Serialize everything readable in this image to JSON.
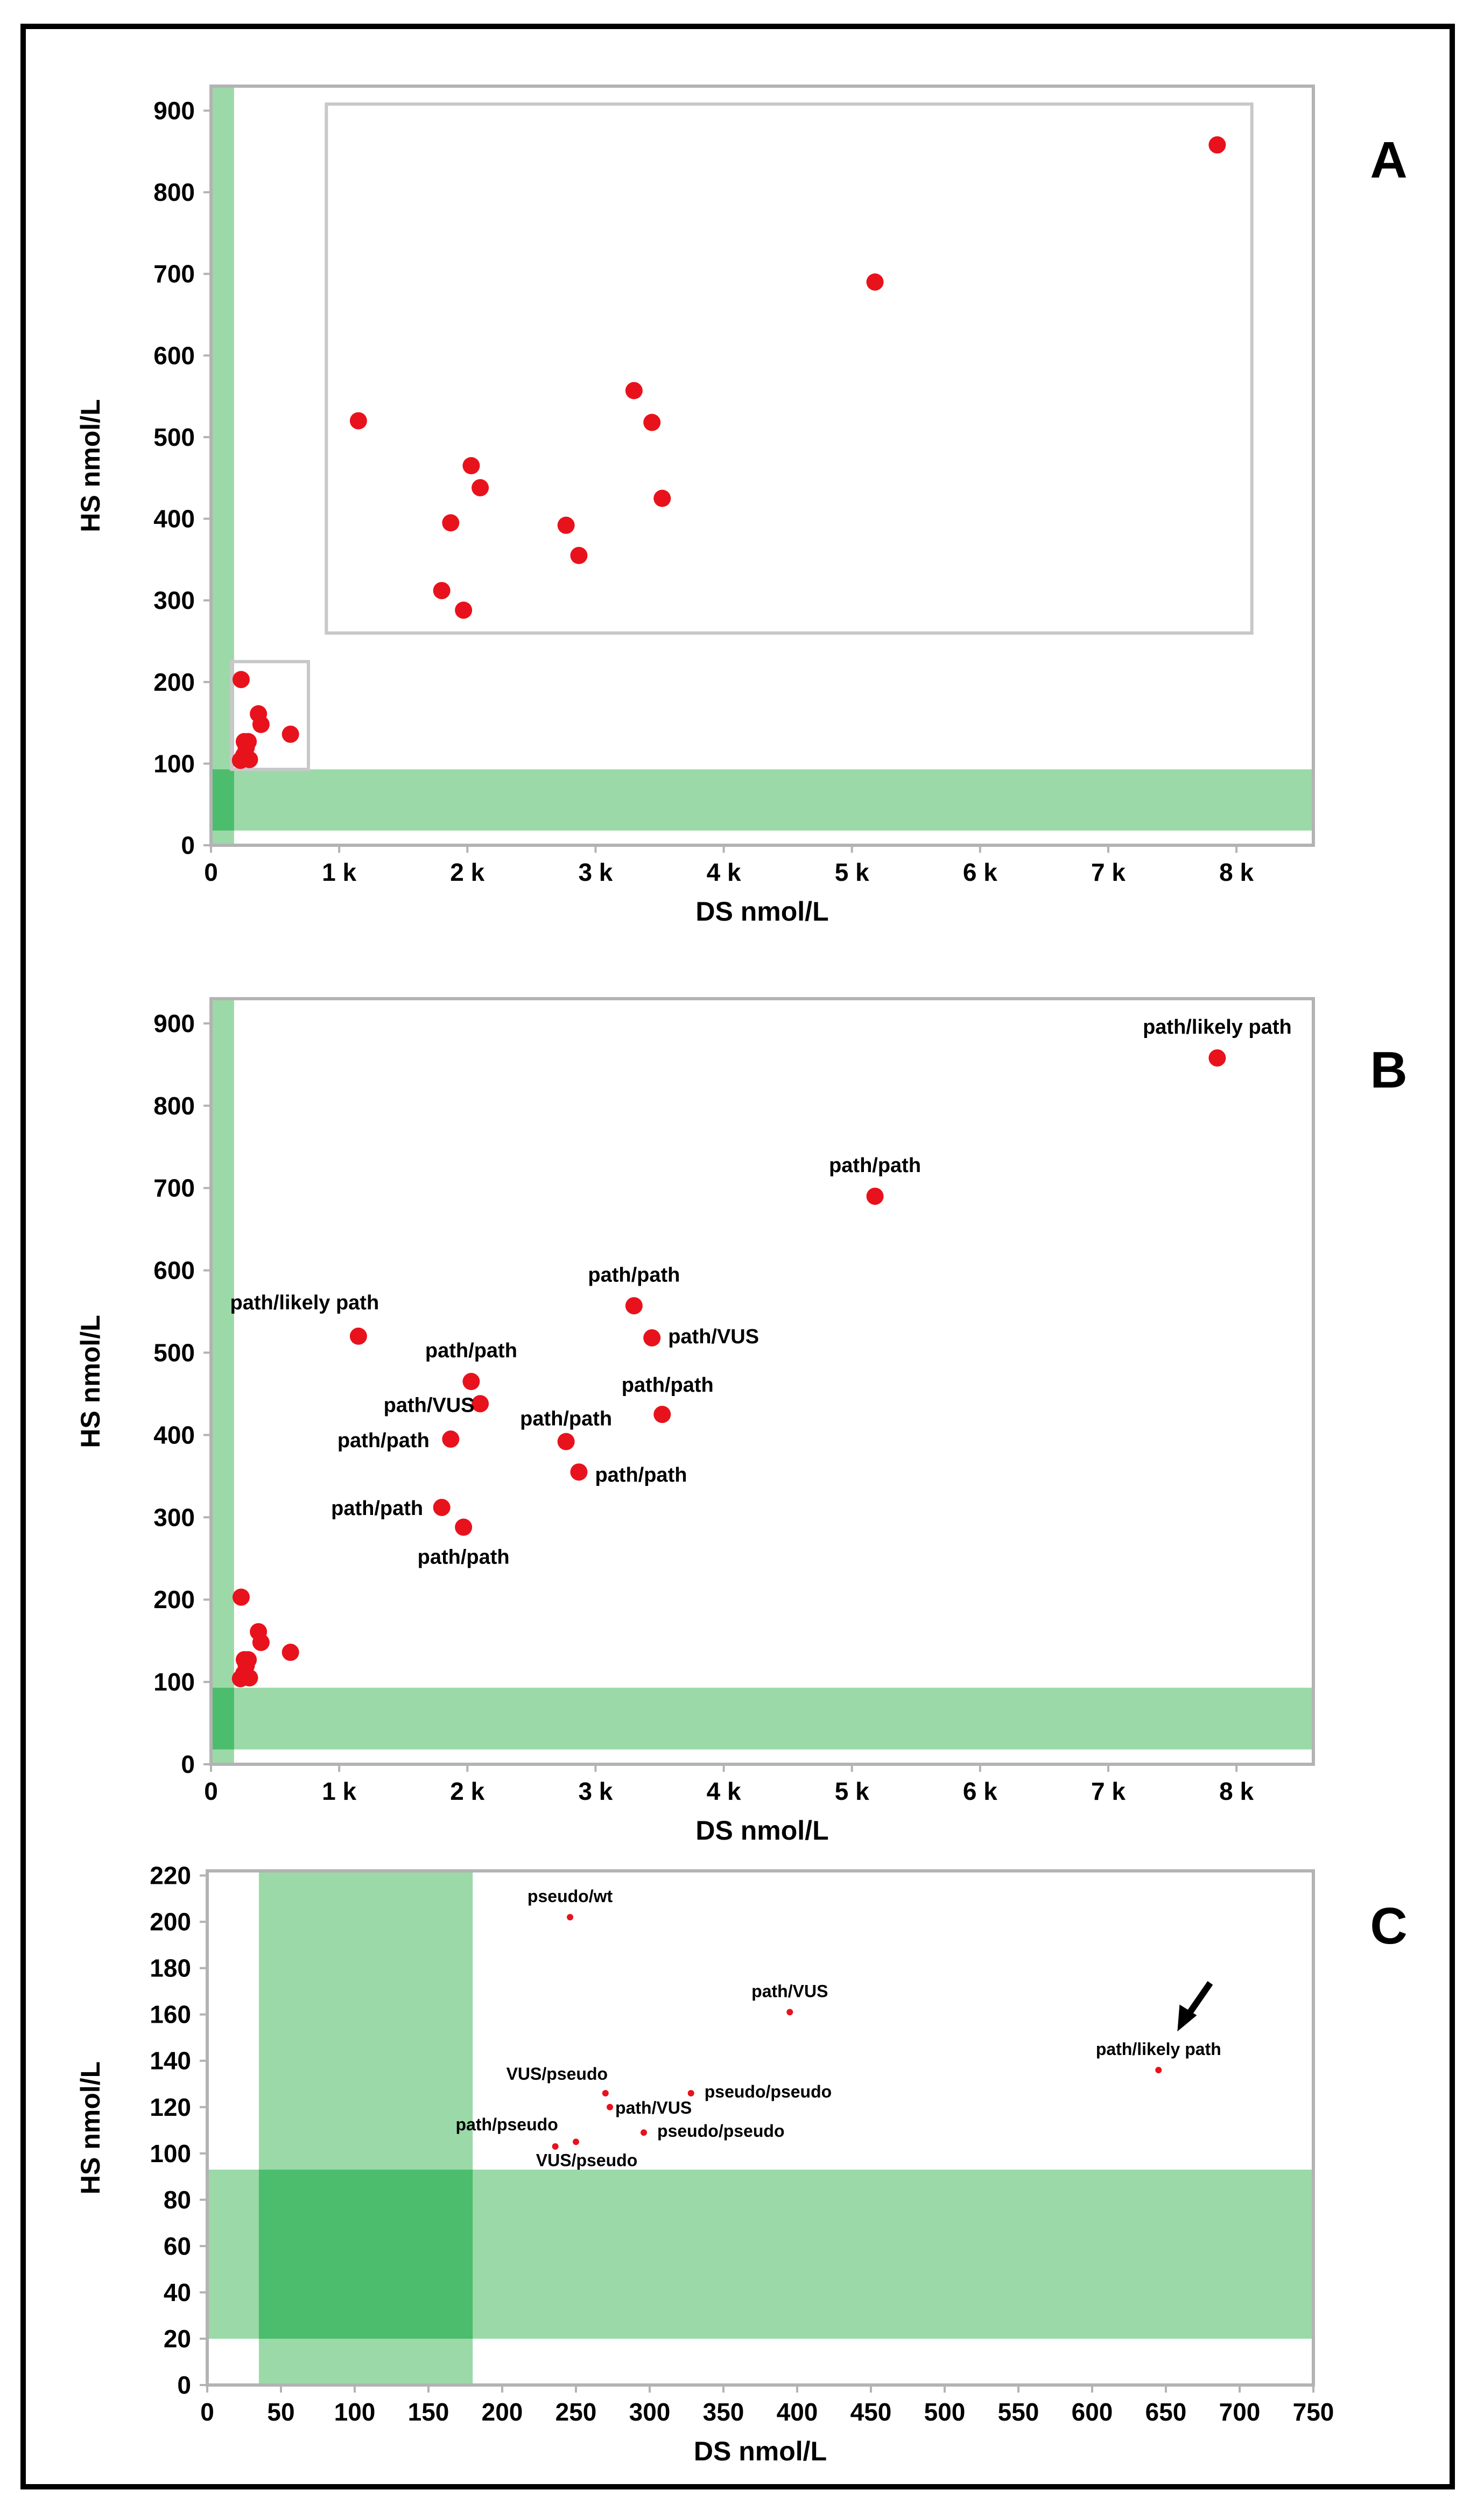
{
  "chart_data": [
    {
      "panel": "A",
      "type": "scatter",
      "xlabel": "DS nmol/L",
      "ylabel": "HS nmol/L",
      "xlim": [
        0,
        8600
      ],
      "ylim": [
        0,
        930
      ],
      "xticks": [
        0,
        1000,
        2000,
        3000,
        4000,
        5000,
        6000,
        7000,
        8000
      ],
      "xtick_labels": [
        "0",
        "1 k",
        "2 k",
        "3 k",
        "4 k",
        "5 k",
        "6 k",
        "7 k",
        "8 k"
      ],
      "yticks": [
        0,
        100,
        200,
        300,
        400,
        500,
        600,
        700,
        800,
        900
      ],
      "ytick_labels": [
        "0",
        "100",
        "200",
        "300",
        "400",
        "500",
        "600",
        "700",
        "800",
        "900"
      ],
      "normal_band_x": [
        0,
        180
      ],
      "normal_band_y": [
        18,
        93
      ],
      "colors": {
        "point": "#e8121c",
        "band": "#9cd9a8",
        "band_overlap": "#4cbd6c",
        "frame": "#b3b3b3"
      },
      "points": [
        {
          "x": 1150,
          "y": 520
        },
        {
          "x": 1800,
          "y": 312
        },
        {
          "x": 1870,
          "y": 395
        },
        {
          "x": 1970,
          "y": 288
        },
        {
          "x": 2030,
          "y": 465
        },
        {
          "x": 2100,
          "y": 438
        },
        {
          "x": 2770,
          "y": 392
        },
        {
          "x": 2870,
          "y": 355
        },
        {
          "x": 3300,
          "y": 557
        },
        {
          "x": 3440,
          "y": 518
        },
        {
          "x": 3520,
          "y": 425
        },
        {
          "x": 5180,
          "y": 690
        },
        {
          "x": 7850,
          "y": 858
        },
        {
          "x": 235,
          "y": 203
        },
        {
          "x": 370,
          "y": 161
        },
        {
          "x": 390,
          "y": 148
        },
        {
          "x": 620,
          "y": 136
        },
        {
          "x": 290,
          "y": 127
        },
        {
          "x": 260,
          "y": 127
        },
        {
          "x": 275,
          "y": 120
        },
        {
          "x": 255,
          "y": 110
        },
        {
          "x": 300,
          "y": 105
        },
        {
          "x": 230,
          "y": 104
        }
      ],
      "inset_box": {
        "x": [
          160,
          760
        ],
        "y": [
          93,
          225
        ]
      },
      "zoom_box": {
        "x": [
          900,
          8120
        ],
        "y": [
          260,
          908
        ]
      }
    },
    {
      "panel": "B",
      "type": "scatter",
      "xlabel": "DS nmol/L",
      "ylabel": "HS nmol/L",
      "xlim": [
        0,
        8600
      ],
      "ylim": [
        0,
        930
      ],
      "xticks": [
        0,
        1000,
        2000,
        3000,
        4000,
        5000,
        6000,
        7000,
        8000
      ],
      "xtick_labels": [
        "0",
        "1 k",
        "2 k",
        "3 k",
        "4 k",
        "5 k",
        "6 k",
        "7 k",
        "8 k"
      ],
      "yticks": [
        0,
        100,
        200,
        300,
        400,
        500,
        600,
        700,
        800,
        900
      ],
      "ytick_labels": [
        "0",
        "100",
        "200",
        "300",
        "400",
        "500",
        "600",
        "700",
        "800",
        "900"
      ],
      "normal_band_x": [
        0,
        180
      ],
      "normal_band_y": [
        18,
        93
      ],
      "points": [
        {
          "x": 7850,
          "y": 858,
          "label": "path/likely path"
        },
        {
          "x": 5180,
          "y": 690,
          "label": "path/path"
        },
        {
          "x": 3300,
          "y": 557,
          "label": "path/path"
        },
        {
          "x": 3440,
          "y": 518,
          "label": "path/VUS"
        },
        {
          "x": 1150,
          "y": 520,
          "label": "path/likely path"
        },
        {
          "x": 2030,
          "y": 465,
          "label": "path/path"
        },
        {
          "x": 2100,
          "y": 438,
          "label": "path/VUS"
        },
        {
          "x": 3520,
          "y": 425,
          "label": "path/path"
        },
        {
          "x": 2770,
          "y": 392,
          "label": "path/path"
        },
        {
          "x": 1870,
          "y": 395,
          "label": "path/path"
        },
        {
          "x": 2870,
          "y": 355,
          "label": "path/path"
        },
        {
          "x": 1800,
          "y": 312,
          "label": "path/path"
        },
        {
          "x": 1970,
          "y": 288,
          "label": "path/path"
        },
        {
          "x": 235,
          "y": 203
        },
        {
          "x": 370,
          "y": 161
        },
        {
          "x": 390,
          "y": 148
        },
        {
          "x": 620,
          "y": 136
        },
        {
          "x": 290,
          "y": 127
        },
        {
          "x": 260,
          "y": 127
        },
        {
          "x": 275,
          "y": 120
        },
        {
          "x": 255,
          "y": 110
        },
        {
          "x": 300,
          "y": 105
        },
        {
          "x": 230,
          "y": 104
        }
      ]
    },
    {
      "panel": "C",
      "type": "scatter",
      "xlabel": "DS nmol/L",
      "ylabel": "HS nmol/L",
      "xlim": [
        0,
        750
      ],
      "ylim": [
        0,
        222
      ],
      "xticks": [
        0,
        50,
        100,
        150,
        200,
        250,
        300,
        350,
        400,
        450,
        500,
        550,
        600,
        650,
        700,
        750
      ],
      "xtick_labels": [
        "0",
        "50",
        "100",
        "150",
        "200",
        "250",
        "300",
        "350",
        "400",
        "450",
        "500",
        "550",
        "600",
        "650",
        "700",
        "750"
      ],
      "yticks": [
        0,
        20,
        40,
        60,
        80,
        100,
        120,
        140,
        160,
        180,
        200,
        220
      ],
      "ytick_labels": [
        "0",
        "20",
        "40",
        "60",
        "80",
        "100",
        "120",
        "140",
        "160",
        "180",
        "200",
        "220"
      ],
      "normal_band_x": [
        35,
        180
      ],
      "normal_band_y": [
        20,
        93
      ],
      "points": [
        {
          "x": 246,
          "y": 202,
          "label": "pseudo/wt"
        },
        {
          "x": 395,
          "y": 161,
          "label": "path/VUS"
        },
        {
          "x": 645,
          "y": 136,
          "label": "path/likely path"
        },
        {
          "x": 270,
          "y": 126,
          "label": "VUS/pseudo"
        },
        {
          "x": 328,
          "y": 126,
          "label": "pseudo/pseudo"
        },
        {
          "x": 273,
          "y": 120,
          "label": "path/VUS"
        },
        {
          "x": 296,
          "y": 109,
          "label": "pseudo/pseudo"
        },
        {
          "x": 236,
          "y": 103,
          "label": "path/pseudo"
        },
        {
          "x": 250,
          "y": 105,
          "label": "VUS/pseudo"
        }
      ],
      "arrow_target": {
        "x": 660,
        "y": 155
      }
    }
  ]
}
